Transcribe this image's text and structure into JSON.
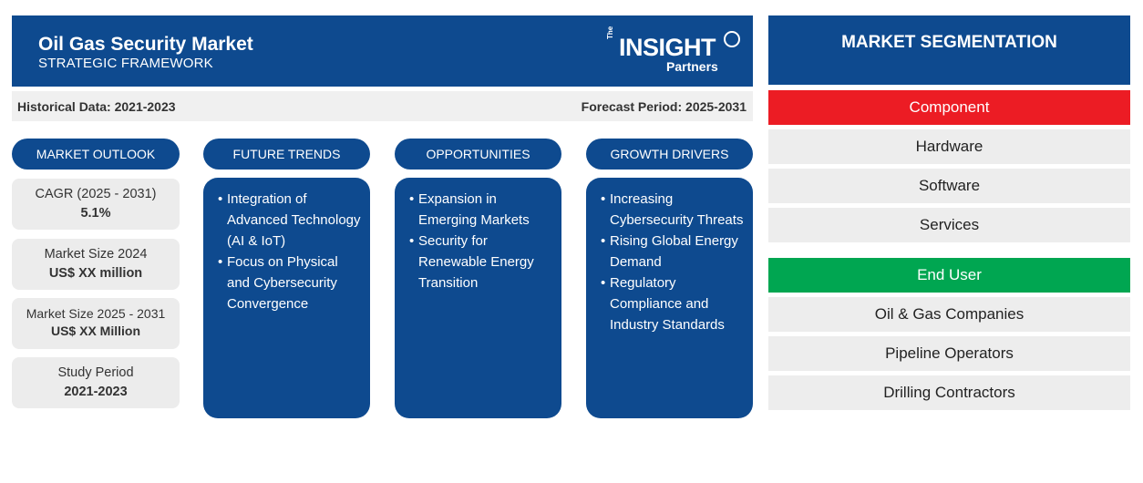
{
  "header": {
    "title": "Oil Gas Security Market",
    "subtitle": "STRATEGIC FRAMEWORK",
    "logo": {
      "the": "The",
      "main": "INSIGHT",
      "partners": "Partners"
    }
  },
  "periods": {
    "historical": "Historical Data: 2021-2023",
    "forecast": "Forecast Period: 2025-2031"
  },
  "columns": {
    "outlook": "MARKET OUTLOOK",
    "trends": "FUTURE TRENDS",
    "opportunities": "OPPORTUNITIES",
    "drivers": "GROWTH DRIVERS"
  },
  "outlook": [
    {
      "label": "CAGR (2025 - 2031)",
      "value": "5.1%"
    },
    {
      "label": "Market Size 2024",
      "value": "US$ XX million"
    },
    {
      "label": "Market Size 2025 - 2031",
      "value": "US$ XX Million"
    },
    {
      "label": "Study Period",
      "value": "2021-2023"
    }
  ],
  "trends": [
    "Integration of Advanced Technology (AI & IoT)",
    "Focus on Physical and Cybersecurity Convergence"
  ],
  "opportunities": [
    "Expansion in Emerging Markets",
    "Security for Renewable Energy Transition"
  ],
  "drivers": [
    "Increasing Cybersecurity Threats",
    "Rising Global Energy Demand",
    "Regulatory Compliance and Industry Standards"
  ],
  "segmentation": {
    "title": "MARKET SEGMENTATION",
    "component": {
      "label": "Component",
      "color": "#ec1c24",
      "items": [
        "Hardware",
        "Software",
        "Services"
      ]
    },
    "end_user": {
      "label": "End User",
      "color": "#00a651",
      "items": [
        "Oil & Gas Companies",
        "Pipeline Operators",
        "Drilling Contractors"
      ]
    }
  }
}
